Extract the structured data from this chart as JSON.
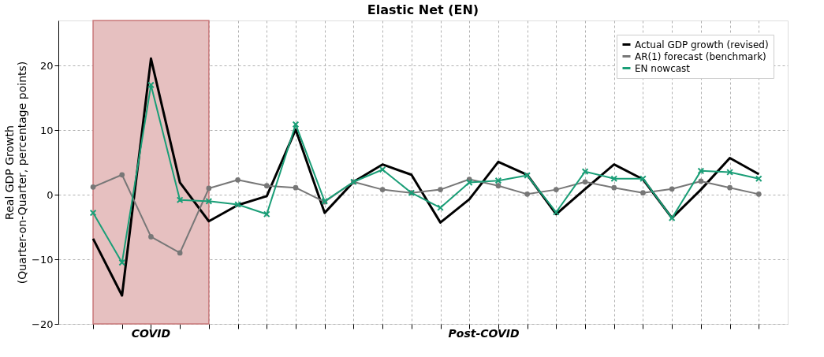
{
  "chart_data": {
    "type": "line",
    "title": "Elastic Net (EN)",
    "ylabel": "Real GDP Growth\n(Quarter-on-Quarter, percentage points)",
    "categories": [
      null,
      null,
      null,
      null,
      null,
      null,
      null,
      null,
      null,
      null,
      null,
      null,
      null,
      null,
      null,
      null,
      null,
      null,
      null,
      null,
      null,
      null,
      null,
      null
    ],
    "series": [
      {
        "name": "Actual GDP growth (revised)",
        "color": "#000000",
        "marker": "none",
        "values": [
          -6.8,
          -15.6,
          21.1,
          1.9,
          -4.1,
          -1.6,
          -0.2,
          10.1,
          -2.8,
          2.0,
          4.7,
          3.1,
          -4.3,
          -0.7,
          5.1,
          3.1,
          -3.0,
          0.9,
          4.7,
          2.4,
          -3.6,
          0.8,
          5.7,
          3.2
        ]
      },
      {
        "name": "AR(1) forecast (benchmark)",
        "color": "#777777",
        "marker": "circle",
        "values": [
          1.2,
          3.1,
          -6.5,
          -9.0,
          1.0,
          2.3,
          1.4,
          1.1,
          -1.1,
          2.0,
          0.8,
          0.3,
          0.8,
          2.4,
          1.4,
          0.1,
          0.8,
          2.0,
          1.1,
          0.3,
          0.9,
          2.1,
          1.1,
          0.1
        ]
      },
      {
        "name": "EN nowcast",
        "color": "#1a9e77",
        "marker": "cross",
        "values": [
          -2.8,
          -10.5,
          17.0,
          -0.8,
          -1.0,
          -1.5,
          -3.0,
          10.9,
          -1.0,
          2.0,
          3.9,
          0.3,
          -2.0,
          1.9,
          2.2,
          3.0,
          -2.7,
          3.6,
          2.5,
          2.5,
          -3.6,
          3.7,
          3.5,
          2.5
        ]
      }
    ],
    "annotations": [
      "COVID",
      "Post-COVID"
    ],
    "ylim": [
      -20,
      27
    ],
    "yticks": [
      -20,
      -10,
      0,
      10,
      20
    ],
    "grid": true,
    "legend": "top right",
    "line_style": "solid"
  }
}
